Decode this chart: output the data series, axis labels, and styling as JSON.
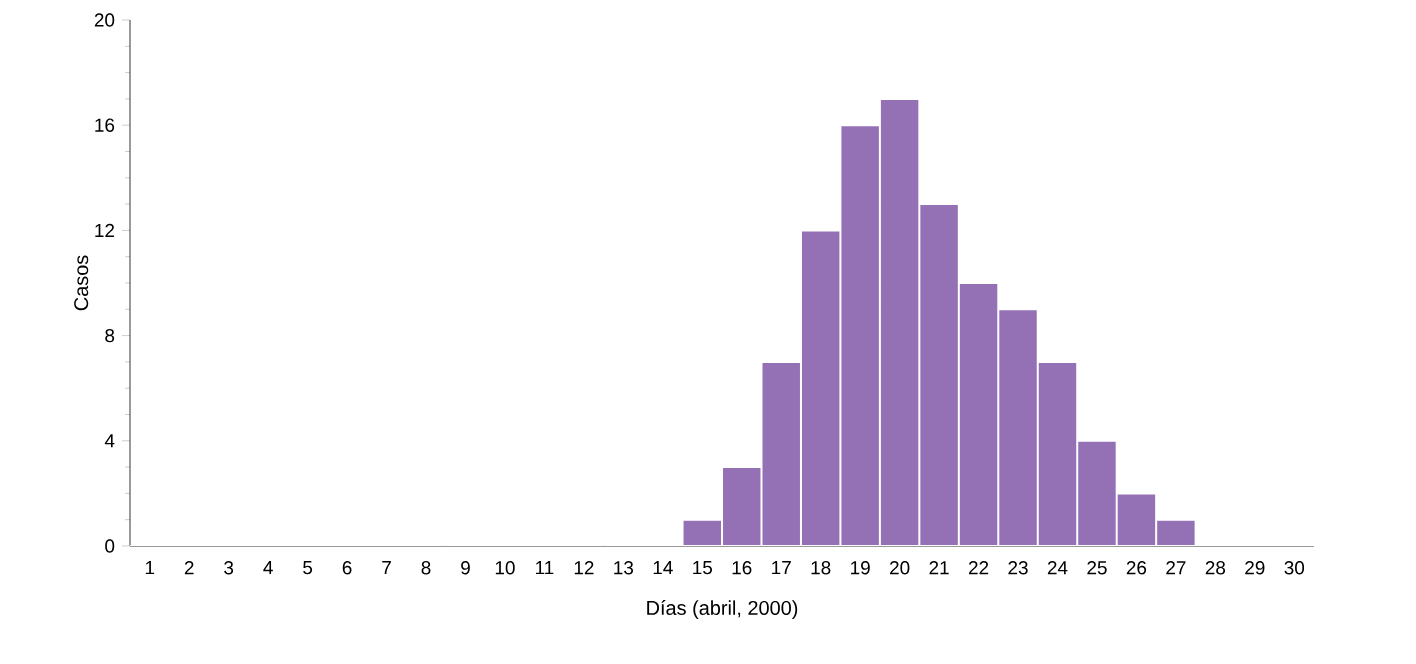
{
  "chart_data": {
    "type": "bar",
    "xlabel": "Días (abril, 2000)",
    "ylabel": "Casos",
    "categories": [
      "1",
      "2",
      "3",
      "4",
      "5",
      "6",
      "7",
      "8",
      "9",
      "10",
      "11",
      "12",
      "13",
      "14",
      "15",
      "16",
      "17",
      "18",
      "19",
      "20",
      "21",
      "22",
      "23",
      "24",
      "25",
      "26",
      "27",
      "28",
      "29",
      "30"
    ],
    "values": [
      0,
      0,
      0,
      0,
      0,
      0,
      0,
      0,
      0,
      0,
      0,
      0,
      0,
      0,
      1,
      3,
      7,
      12,
      16,
      17,
      13,
      10,
      9,
      7,
      4,
      2,
      1,
      0,
      0,
      0
    ],
    "color": "#9471b4",
    "ylim": [
      0,
      20
    ],
    "yticks": [
      0,
      4,
      8,
      12,
      16,
      20
    ],
    "grid": false
  }
}
